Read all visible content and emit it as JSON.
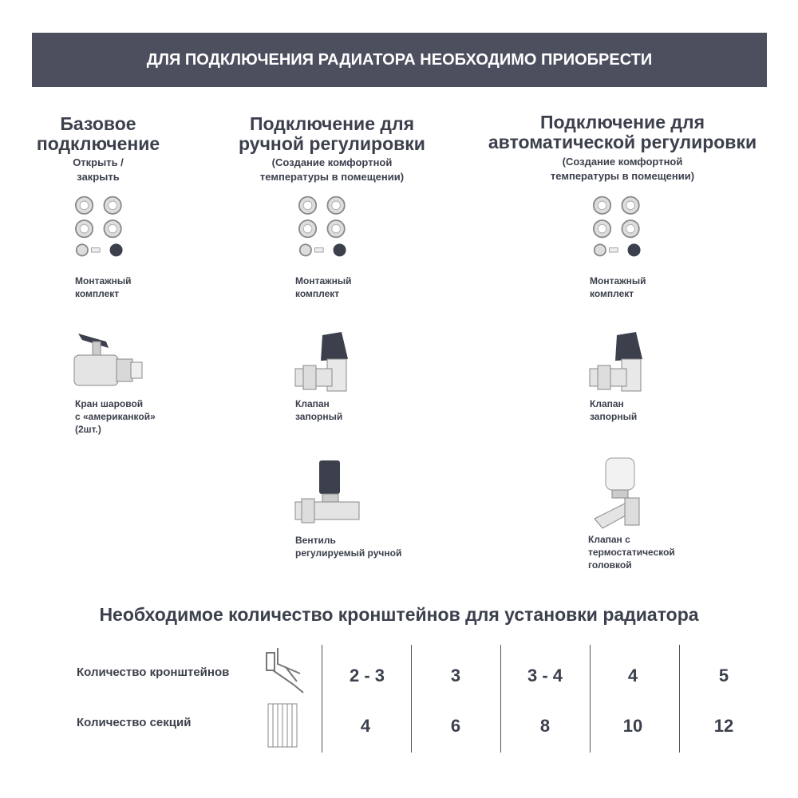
{
  "banner": "ДЛЯ ПОДКЛЮЧЕНИЯ РАДИАТОРА НЕОБХОДИМО ПРИОБРЕСТИ",
  "columns": [
    {
      "title": [
        "Базовое",
        "подключение"
      ],
      "subtitle": [
        "Открыть /",
        "закрыть"
      ],
      "items": [
        {
          "icon": "mounting-kit",
          "label": [
            "Монтажный",
            "комплект"
          ]
        },
        {
          "icon": "ball-valve",
          "label": [
            "Кран шаровой",
            "с «американкой»",
            "(2шт.)"
          ]
        }
      ]
    },
    {
      "title": [
        "Подключение для",
        "ручной регулировки"
      ],
      "subtitle": [
        "(Создание комфортной",
        "температуры в помещении)"
      ],
      "items": [
        {
          "icon": "mounting-kit",
          "label": [
            "Монтажный",
            "комплект"
          ]
        },
        {
          "icon": "shutoff-valve",
          "label": [
            "Клапан",
            "запорный"
          ]
        },
        {
          "icon": "manual-valve",
          "label": [
            "Вентиль",
            "регулируемый ручной"
          ]
        }
      ]
    },
    {
      "title": [
        "Подключение для",
        "автоматической регулировки"
      ],
      "subtitle": [
        "(Создание комфортной",
        "температуры в помещении)"
      ],
      "items": [
        {
          "icon": "mounting-kit",
          "label": [
            "Монтажный",
            "комплект"
          ]
        },
        {
          "icon": "shutoff-valve",
          "label": [
            "Клапан",
            "запорный"
          ]
        },
        {
          "icon": "thermostatic-valve",
          "label": [
            "Клапан с",
            "термостатической",
            "головкой"
          ]
        }
      ]
    }
  ],
  "brackets": {
    "title": "Необходимое количество кронштейнов для установки радиатора",
    "rows": [
      {
        "label": "Количество кронштейнов",
        "icon": "bracket",
        "values": [
          "2 - 3",
          "3",
          "3 - 4",
          "4",
          "5"
        ]
      },
      {
        "label": "Количество секций",
        "icon": "radiator",
        "values": [
          "4",
          "6",
          "8",
          "10",
          "12"
        ]
      }
    ]
  },
  "colors": {
    "banner": "#4b4f5e",
    "text": "#3c404d"
  }
}
